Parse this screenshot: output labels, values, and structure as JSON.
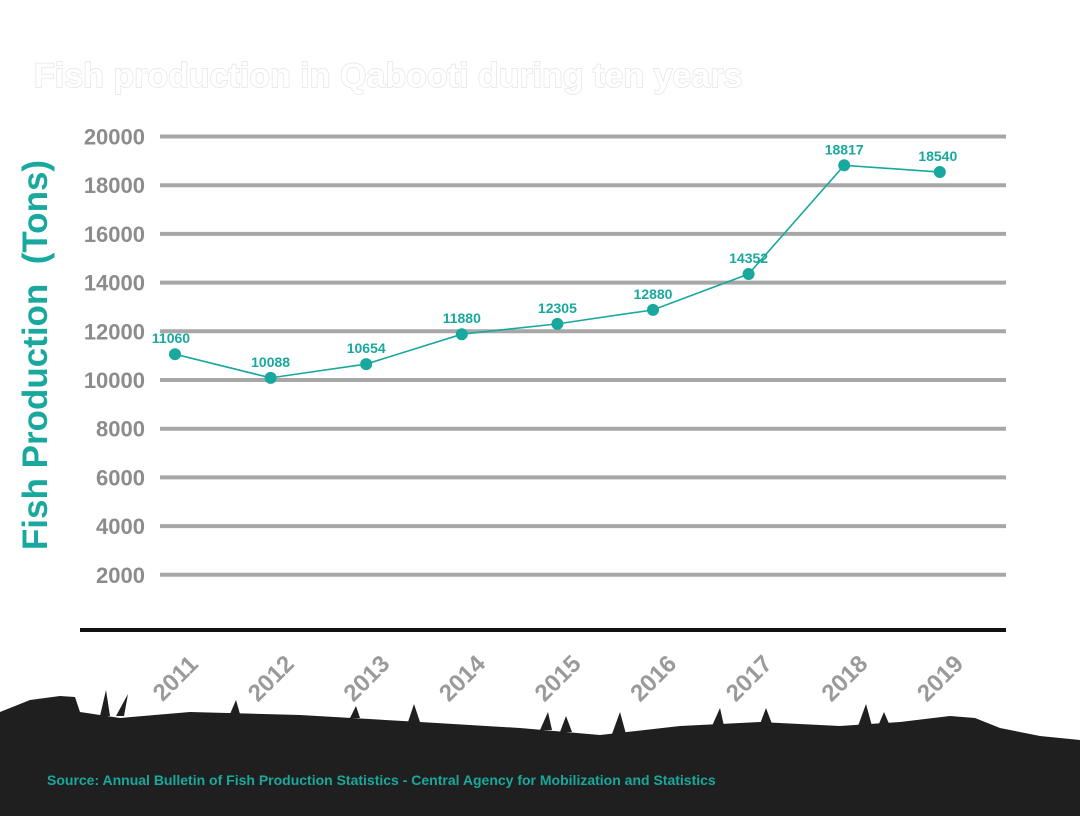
{
  "colors": {
    "accent": "#19a89d",
    "grid": "#a7a7a7",
    "tick_text": "#8c8c8c",
    "ground": "#1f1f1f",
    "title_text": "#ffffff"
  },
  "source": "Source: Annual Bulletin of Fish Production Statistics - Central Agency for Mobilization and Statistics",
  "chart_data": {
    "type": "line",
    "title": "Fish production in Qabooti during ten years",
    "xlabel": "",
    "ylabel": "Fish Production  (Tons)",
    "categories": [
      "2011",
      "2012",
      "2013",
      "2014",
      "2015",
      "2016",
      "2017",
      "2018",
      "2019"
    ],
    "series": [
      {
        "values": [
          11060,
          10088,
          10654,
          11880,
          12305,
          12880,
          14352,
          18817,
          18540
        ],
        "data_labels": [
          "11060",
          "10088",
          "10654",
          "11880",
          "12305",
          "12880",
          "14352",
          "18817",
          "18540"
        ]
      }
    ],
    "yticks": [
      "2000",
      "4000",
      "6000",
      "8000",
      "10000",
      "12000",
      "14000",
      "16000",
      "18000",
      "20000"
    ],
    "ylim": [
      0,
      20000
    ],
    "grid": true,
    "legend": "none"
  }
}
